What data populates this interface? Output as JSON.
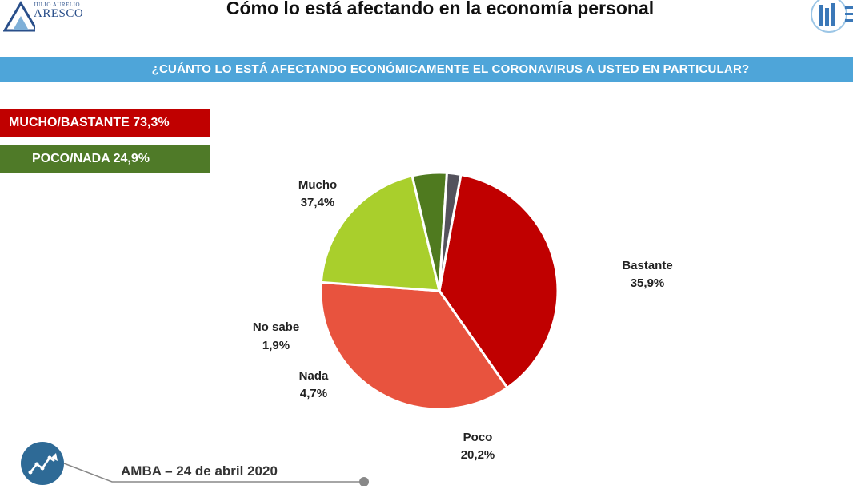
{
  "header": {
    "logo_small": "JULIO AURELIO",
    "logo_main": "ARESCO",
    "title": "Cómo lo está afectando en la economía personal"
  },
  "banner": {
    "question": "¿CUÁNTO LO ESTÁ AFECTANDO ECONÓMICAMENTE EL CORONAVIRUS A USTED EN PARTICULAR?"
  },
  "summary": {
    "high_label": "MUCHO/BASTANTE 73,3%",
    "low_label": "POCO/NADA 24,9%",
    "high_color": "#c00000",
    "low_color": "#4f7a28"
  },
  "chart_data": {
    "type": "pie",
    "slices": [
      {
        "label": "Mucho",
        "value": 37.4,
        "value_label": "37,4%",
        "color": "#c00000"
      },
      {
        "label": "Bastante",
        "value": 35.9,
        "value_label": "35,9%",
        "color": "#e8533e"
      },
      {
        "label": "Poco",
        "value": 20.2,
        "value_label": "20,2%",
        "color": "#a9cf2c"
      },
      {
        "label": "Nada",
        "value": 4.7,
        "value_label": "4,7%",
        "color": "#4f7a1f"
      },
      {
        "label": "No sabe",
        "value": 1.9,
        "value_label": "1,9%",
        "color": "#54525c"
      }
    ]
  },
  "footer": {
    "label": "AMBA –  24 de abril 2020",
    "icon": "chart-trend-icon"
  },
  "colors": {
    "banner": "#4ea5d9",
    "accent_blue": "#2e6a96"
  }
}
